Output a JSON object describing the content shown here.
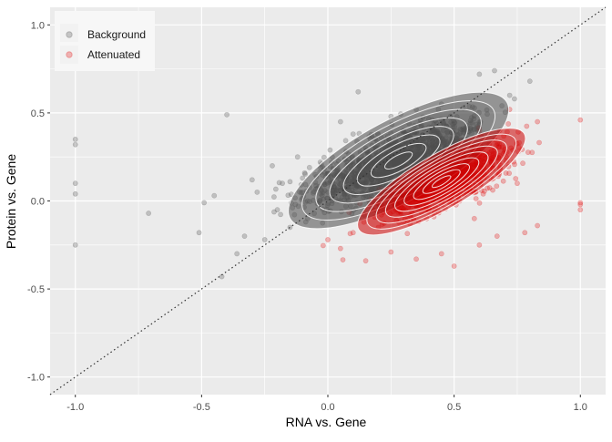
{
  "chart_data": {
    "type": "scatter",
    "title": "",
    "xlabel": "RNA vs. Gene",
    "ylabel": "Protein vs. Gene",
    "xlim": [
      -1.1,
      1.1
    ],
    "ylim": [
      -1.1,
      1.1
    ],
    "x_ticks": [
      -1.0,
      -0.5,
      0.0,
      0.5,
      1.0
    ],
    "x_tick_labels": [
      "-1.0",
      "-0.5",
      "0.0",
      "0.5",
      "1.0"
    ],
    "y_ticks": [
      -1.0,
      -0.5,
      0.0,
      0.5,
      1.0
    ],
    "y_tick_labels": [
      "-1.0",
      "-0.5",
      "0.0",
      "0.5",
      "1.0"
    ],
    "grid": true,
    "panel_background": "#ebebeb",
    "legend_position": "top-left",
    "reference_line": {
      "type": "identity",
      "slope": 1,
      "intercept": 0,
      "style": "dotted"
    },
    "series": [
      {
        "name": "Background",
        "color": "#595959",
        "contour_color": "#4d4d4d",
        "density_center": [
          0.28,
          0.23
        ],
        "points": [
          [
            -1.0,
            0.35
          ],
          [
            -1.0,
            0.32
          ],
          [
            -1.0,
            0.1
          ],
          [
            -1.0,
            0.04
          ],
          [
            -1.0,
            -0.25
          ],
          [
            -0.71,
            -0.07
          ],
          [
            -0.51,
            -0.18
          ],
          [
            -0.49,
            -0.01
          ],
          [
            -0.45,
            0.03
          ],
          [
            -0.4,
            0.49
          ],
          [
            -0.42,
            -0.43
          ],
          [
            -0.36,
            -0.3
          ],
          [
            -0.33,
            -0.2
          ],
          [
            -0.3,
            0.12
          ],
          [
            -0.28,
            0.05
          ],
          [
            -0.25,
            -0.22
          ],
          [
            -0.22,
            0.2
          ],
          [
            -0.2,
            -0.05
          ],
          [
            -0.18,
            0.1
          ],
          [
            -0.15,
            -0.15
          ],
          [
            -0.12,
            0.25
          ],
          [
            -0.1,
            0.05
          ],
          [
            -0.08,
            -0.1
          ],
          [
            0.12,
            0.62
          ],
          [
            0.05,
            0.45
          ],
          [
            0.1,
            0.38
          ],
          [
            0.6,
            0.72
          ],
          [
            0.66,
            0.74
          ],
          [
            0.72,
            0.6
          ],
          [
            0.8,
            0.68
          ],
          [
            0.45,
            0.55
          ],
          [
            0.35,
            0.52
          ],
          [
            0.25,
            0.48
          ],
          [
            0.15,
            0.3
          ],
          [
            0.0,
            0.05
          ],
          [
            -0.05,
            0.15
          ],
          [
            0.08,
            0.08
          ],
          [
            0.2,
            0.15
          ],
          [
            0.3,
            0.3
          ],
          [
            0.4,
            0.42
          ]
        ]
      },
      {
        "name": "Attenuated",
        "color": "#e41a1c",
        "contour_color": "#cc0000",
        "density_center": [
          0.45,
          0.11
        ],
        "points": [
          [
            1.0,
            0.46
          ],
          [
            1.0,
            -0.01
          ],
          [
            1.0,
            -0.02
          ],
          [
            1.0,
            -0.05
          ],
          [
            0.83,
            0.45
          ],
          [
            0.83,
            -0.14
          ],
          [
            0.78,
            -0.18
          ],
          [
            0.75,
            0.1
          ],
          [
            0.7,
            0.28
          ],
          [
            0.67,
            -0.2
          ],
          [
            0.6,
            -0.25
          ],
          [
            0.5,
            -0.37
          ],
          [
            0.45,
            -0.3
          ],
          [
            0.35,
            -0.33
          ],
          [
            0.25,
            -0.29
          ],
          [
            0.15,
            -0.34
          ],
          [
            0.05,
            -0.27
          ],
          [
            0.0,
            -0.22
          ],
          [
            0.1,
            -0.18
          ],
          [
            0.2,
            -0.15
          ],
          [
            0.3,
            -0.12
          ],
          [
            0.4,
            -0.05
          ],
          [
            0.55,
            0.05
          ],
          [
            0.62,
            0.15
          ],
          [
            0.68,
            0.4
          ],
          [
            0.72,
            0.52
          ],
          [
            0.5,
            0.2
          ],
          [
            0.42,
            0.12
          ],
          [
            0.35,
            0.02
          ],
          [
            0.58,
            -0.1
          ]
        ]
      }
    ]
  }
}
